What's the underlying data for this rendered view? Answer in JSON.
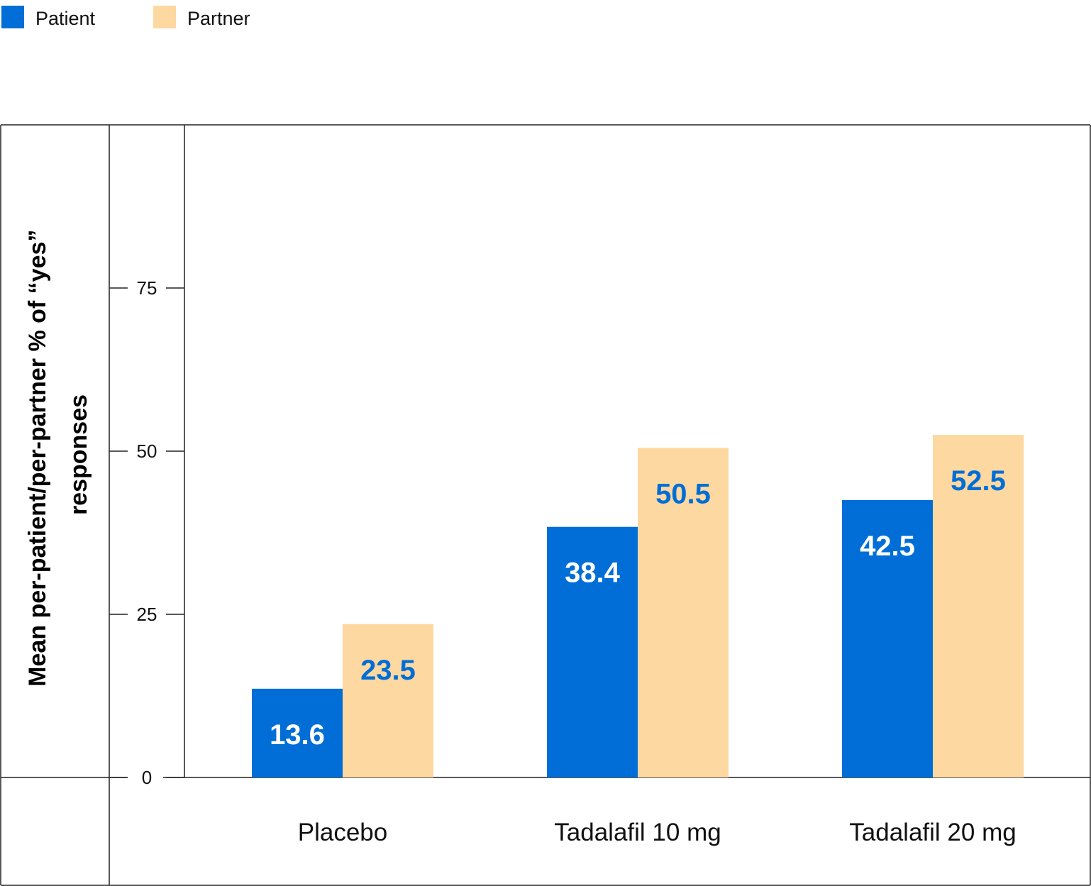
{
  "chart_data": {
    "type": "bar",
    "categories": [
      "Placebo",
      "Tadalafil 10 mg",
      "Tadalafil 20 mg"
    ],
    "series": [
      {
        "name": "Patient",
        "values": [
          13.6,
          38.4,
          42.5
        ],
        "color": "#006ed6",
        "label_color": "#ffffff"
      },
      {
        "name": "Partner",
        "values": [
          23.5,
          50.5,
          52.5
        ],
        "color": "#fed8a1",
        "label_color": "#006ed6"
      }
    ],
    "ylabel_lines": [
      "Mean per-patient/per-partner % of “yes”",
      "responses"
    ],
    "yticks": [
      "0",
      "25",
      "50",
      "75"
    ],
    "ytick_values": [
      0,
      25,
      50,
      75
    ],
    "ylim": [
      0,
      100
    ],
    "legend_position": "top-left",
    "grid": false
  }
}
